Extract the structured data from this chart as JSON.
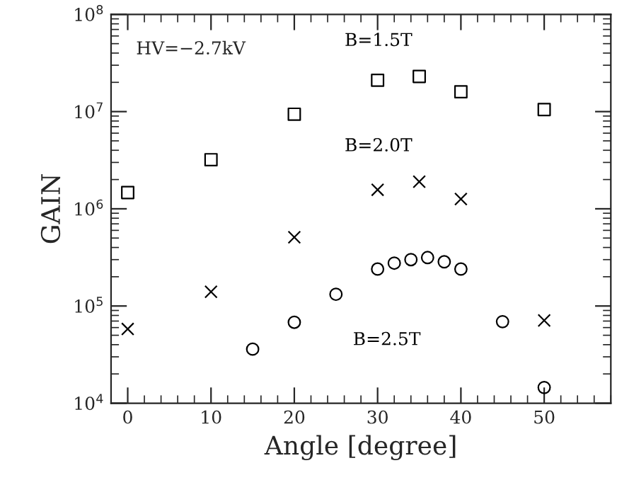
{
  "chart_data": {
    "type": "scatter",
    "xlabel": "Angle [degree]",
    "ylabel": "GAIN",
    "log": "y",
    "grid": false,
    "legend": false,
    "xlim": [
      -2,
      58
    ],
    "xticks": [
      0,
      10,
      20,
      30,
      40,
      50
    ],
    "ylim": [
      10000,
      100000000
    ],
    "yticks": [
      {
        "value": 10000,
        "label": "10$^{4}$"
      },
      {
        "value": 100000,
        "label": "10$^{5}$"
      },
      {
        "value": 1000000,
        "label": "10$^{6}$"
      },
      {
        "value": 10000000,
        "label": "10$^{7}$"
      },
      {
        "value": 100000000,
        "label": "10$^{8}$"
      }
    ],
    "series": [
      {
        "name": "B=1.5T",
        "color": "#000000",
        "marker": "square",
        "x": [
          0,
          10,
          20,
          30,
          35,
          40,
          50
        ],
        "values": [
          1470000,
          3200000,
          9400000,
          21000000,
          23000000,
          16000000,
          10500000
        ]
      },
      {
        "name": "B=2.0T",
        "color": "#000000",
        "marker": "cross",
        "x": [
          0,
          10,
          20,
          30,
          35,
          40,
          50
        ],
        "values": [
          58000,
          140000,
          510000,
          1570000,
          1900000,
          1260000,
          71000
        ]
      },
      {
        "name": "B=2.5T",
        "color": "#000000",
        "marker": "circle",
        "x": [
          15,
          20,
          25,
          30,
          32,
          34,
          36,
          38,
          40,
          45,
          50
        ],
        "values": [
          36000,
          68000,
          132000,
          240000,
          276000,
          300000,
          315000,
          285000,
          240000,
          69000,
          14500
        ]
      }
    ],
    "annotations": [
      "HV=−2.7kV"
    ]
  }
}
